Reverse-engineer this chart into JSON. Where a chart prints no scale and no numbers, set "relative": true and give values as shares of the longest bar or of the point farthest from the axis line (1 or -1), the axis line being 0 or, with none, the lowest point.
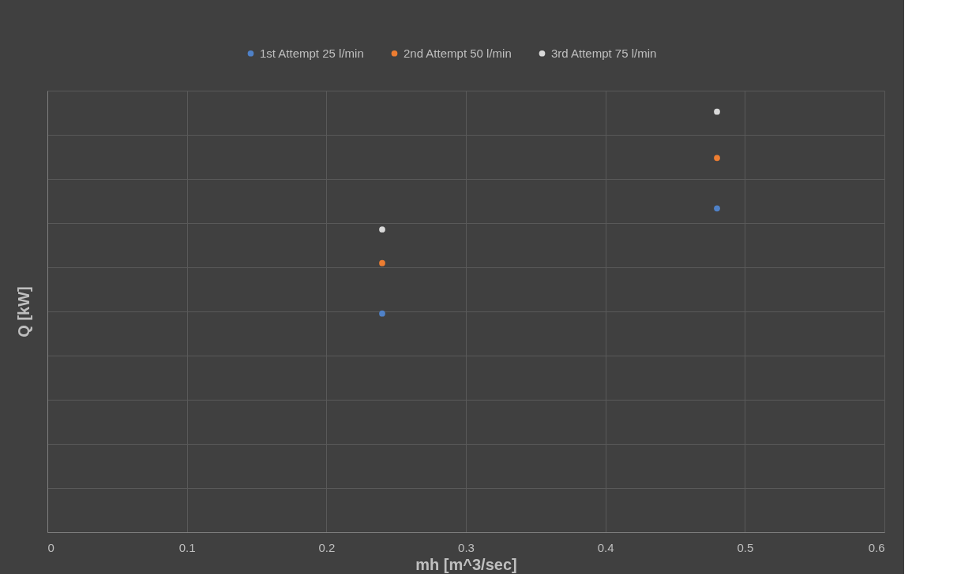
{
  "chart_data": {
    "type": "scatter",
    "relative": true,
    "xlabel": "mh [m^3/sec]",
    "ylabel": "Q [kW]",
    "x": [
      0.24,
      0.48
    ],
    "xlim": [
      0,
      0.6
    ],
    "xticks": [
      {
        "value": 0,
        "label": "0"
      },
      0.1,
      0.2,
      0.3,
      0.4,
      0.5,
      0.6
    ],
    "series": [
      {
        "name": "1st Attempt 25 l/min",
        "color": "#4f81c7",
        "values": [
          0.52,
          0.77
        ]
      },
      {
        "name": "2nd Attempt 50 l/min",
        "color": "#ed7d31",
        "values": [
          0.64,
          0.89
        ]
      },
      {
        "name": "3rd Attempt 75 l/min",
        "color": "#d9d9d9",
        "values": [
          0.72,
          1
        ]
      }
    ],
    "grid": true,
    "legend": "top",
    "marker": "circle"
  }
}
